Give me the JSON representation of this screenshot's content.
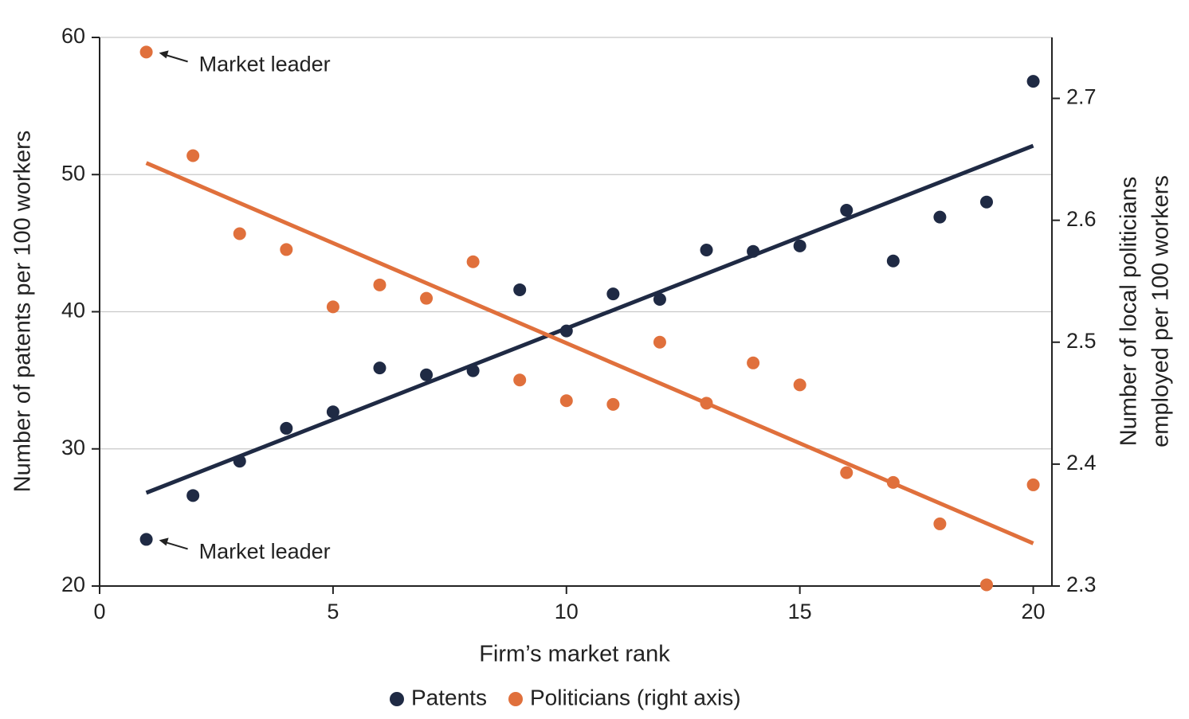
{
  "chart_data": {
    "type": "scatter",
    "xlabel": "Firm’s market rank",
    "ylabel": "Number of patents per 100 workers",
    "y2label": [
      "Number of local politicians",
      "employed per 100 workers"
    ],
    "x": [
      1,
      2,
      3,
      4,
      5,
      6,
      7,
      8,
      9,
      10,
      11,
      12,
      13,
      14,
      15,
      16,
      17,
      18,
      19,
      20
    ],
    "series": [
      {
        "name": "Patents",
        "color": "#1f2a44",
        "axis": "y",
        "values": [
          23.4,
          26.6,
          29.1,
          31.5,
          32.7,
          35.9,
          35.4,
          35.7,
          41.6,
          38.6,
          41.3,
          40.9,
          44.5,
          44.4,
          44.8,
          47.4,
          43.7,
          46.9,
          48.0,
          56.8
        ],
        "trend": {
          "x": [
            1,
            20
          ],
          "values": [
            26.8,
            52.1
          ]
        }
      },
      {
        "name": "Politicians (right axis)",
        "color": "#e0703c",
        "axis": "y2",
        "values": [
          2.738,
          2.653,
          2.589,
          2.576,
          2.529,
          2.547,
          2.536,
          2.566,
          2.469,
          2.452,
          2.449,
          2.5,
          2.45,
          2.483,
          2.465,
          2.393,
          2.385,
          2.351,
          2.301,
          2.383
        ],
        "trend": {
          "x": [
            1,
            20
          ],
          "values": [
            2.647,
            2.335
          ]
        }
      }
    ],
    "annotations": [
      "Market leader",
      "Market leader"
    ],
    "xlim": [
      0,
      20.4
    ],
    "xticks": [
      0,
      5,
      10,
      15,
      20
    ],
    "ylim": [
      20,
      60
    ],
    "yticks": [
      20,
      30,
      40,
      50,
      60
    ],
    "y2lim": [
      2.3,
      2.75
    ],
    "y2ticks": [
      2.3,
      2.4,
      2.5,
      2.6,
      2.7
    ],
    "grid": true,
    "legend": "bottom"
  }
}
